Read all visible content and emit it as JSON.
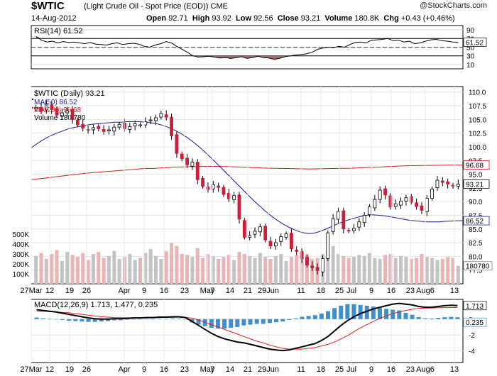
{
  "header": {
    "symbol": "$WTIC",
    "description": "(Light Crude Oil - Spot Price (EOD))",
    "exchange": "CME",
    "date": "14-Aug-2012",
    "open_label": "Open",
    "open": "92.71",
    "high_label": "High",
    "high": "93.92",
    "low_label": "Low",
    "low": "92.56",
    "close_label": "Close",
    "close": "93.21",
    "volume_label": "Volume",
    "volume": "180.8K",
    "chg_label": "Chg",
    "chg": "+0.43 (+0.46%)",
    "watermark": "@StockCharts.com"
  },
  "colors": {
    "up": "#ffffff",
    "down": "#cc1e3c",
    "ma50": "#1c1c9c",
    "ma200": "#cc2020",
    "vol_up": "#c4c4c4",
    "vol_down": "#eab3b6",
    "macd_line": "#000000",
    "macd_signal": "#dd2020",
    "histogram": "#3f8fcc",
    "rsi_line": "#000000"
  },
  "chart_data": [
    {
      "type": "line",
      "panel": "rsi",
      "legend": "RSI(14) 61.52",
      "ylim": [
        0,
        100
      ],
      "ticks": [
        "90",
        "70",
        "50",
        "30",
        "10"
      ],
      "current_label": "61.52",
      "values": [
        75,
        66,
        62,
        64,
        60,
        63,
        61,
        62,
        60,
        58,
        61,
        57,
        56,
        55,
        58,
        60,
        56,
        58,
        59,
        57,
        52,
        50,
        55,
        58,
        63,
        60,
        52,
        45,
        38,
        30,
        27,
        28,
        29,
        27,
        25,
        26,
        24,
        26,
        28,
        24,
        26,
        29,
        26,
        25,
        22,
        24,
        28,
        30,
        32,
        33,
        35,
        38,
        45,
        48,
        50,
        49,
        52,
        50,
        56,
        61,
        62,
        60,
        66,
        67,
        68,
        70,
        65,
        66,
        62,
        64,
        58,
        60,
        64,
        67,
        68,
        65,
        64,
        62,
        61.52
      ]
    },
    {
      "type": "candlestick",
      "panel": "price",
      "legend": [
        "$WTIC (Daily) 93.21",
        "MA(50) 86.52",
        "MA(200) 96.68",
        "Volume 180,780"
      ],
      "ylim": [
        75,
        111
      ],
      "ticks": [
        "110.0",
        "107.5",
        "105.0",
        "102.5",
        "100.0",
        "97.5",
        "95.0",
        "92.5",
        "90.0",
        "87.5",
        "85.0",
        "82.5",
        "80.0",
        "77.5"
      ],
      "current_labels": {
        "close": "93.21",
        "ma200": "96.68",
        "ma50": "86.52",
        "volume": "180780"
      },
      "closes": [
        107.2,
        106.5,
        107.8,
        106.8,
        105.8,
        106.2,
        106.6,
        105.0,
        104.0,
        103.4,
        103.1,
        103.5,
        103.3,
        102.8,
        103.1,
        103.6,
        104.1,
        103.3,
        103.7,
        104.2,
        104.0,
        104.6,
        104.9,
        105.3,
        106.1,
        105.4,
        102.0,
        98.8,
        97.8,
        96.7,
        97.2,
        94.0,
        92.8,
        92.2,
        93.1,
        92.6,
        91.3,
        90.5,
        91.1,
        86.8,
        83.5,
        83.8,
        84.6,
        85.4,
        83.0,
        81.9,
        82.5,
        83.6,
        84.1,
        81.4,
        80.9,
        79.6,
        78.4,
        77.9,
        77.4,
        79.6,
        84.3,
        86.9,
        88.2,
        85.0,
        84.7,
        85.1,
        86.3,
        87.5,
        89.1,
        90.4,
        92.1,
        91.2,
        89.0,
        89.6,
        90.1,
        90.7,
        89.9,
        89.1,
        88.4,
        90.6,
        92.3,
        93.9,
        93.5,
        93.2,
        92.8,
        93.21
      ],
      "ma50": [
        99.8,
        100.6,
        101.3,
        101.9,
        102.4,
        102.8,
        103.2,
        103.5,
        103.7,
        103.9,
        104.1,
        104.2,
        104.3,
        104.4,
        104.5,
        104.5,
        104.6,
        104.6,
        104.6,
        104.5,
        104.4,
        104.2,
        103.9,
        103.5,
        103.0,
        102.4,
        101.7,
        100.9,
        100.0,
        99.0,
        98.0,
        96.9,
        95.8,
        94.7,
        93.6,
        92.5,
        91.4,
        90.3,
        89.3,
        88.3,
        87.4,
        86.6,
        85.9,
        85.3,
        84.8,
        84.4,
        84.2,
        84.2,
        84.5,
        84.9,
        85.4,
        85.9,
        86.3,
        86.7,
        87.0,
        87.3,
        87.5,
        87.6,
        87.5,
        87.4,
        87.2,
        87.0,
        86.8,
        86.6,
        86.5,
        86.4,
        86.3,
        86.3,
        86.3,
        86.4,
        86.45,
        86.5,
        86.52
      ],
      "ma200": [
        94.0,
        94.3,
        94.6,
        94.9,
        95.2,
        95.4,
        95.6,
        95.8,
        96.0,
        96.1,
        96.25,
        96.35,
        96.4,
        96.45,
        96.4,
        96.3,
        96.2,
        96.1,
        96.05,
        96.0,
        95.95,
        96.0,
        96.05,
        96.1,
        96.2,
        96.3,
        96.45,
        96.55,
        96.6,
        96.62,
        96.65,
        96.68
      ],
      "volume": [
        280,
        310,
        250,
        300,
        340,
        230,
        320,
        290,
        270,
        310,
        240,
        300,
        320,
        260,
        280,
        330,
        250,
        270,
        300,
        240,
        260,
        310,
        350,
        280,
        250,
        330,
        410,
        380,
        300,
        290,
        270,
        360,
        260,
        300,
        280,
        250,
        270,
        290,
        240,
        320,
        300,
        280,
        260,
        310,
        270,
        250,
        280,
        300,
        230,
        270,
        290,
        320,
        300,
        250,
        260,
        300,
        330,
        380,
        300,
        280,
        260,
        270,
        290,
        280,
        310,
        260,
        250,
        290,
        300,
        260,
        280,
        270,
        250,
        260,
        300,
        270,
        260,
        240,
        250,
        270,
        260,
        180.78
      ],
      "volume_ticks": [
        "500K",
        "400K",
        "300K",
        "200K",
        "100K"
      ]
    },
    {
      "type": "line",
      "panel": "macd",
      "legend": [
        "MACD(12,26,9) 1.713, 1.477, 0.235"
      ],
      "ylim": [
        -5.5,
        2.5
      ],
      "ticks": [
        "0",
        "-2",
        "-4"
      ],
      "current_labels": {
        "macd": "1.713",
        "histogram": "0.235"
      },
      "macd": [
        1.2,
        1.1,
        1.0,
        0.9,
        0.75,
        0.6,
        0.45,
        0.3,
        0.15,
        0.05,
        0.0,
        0.0,
        0.05,
        0.05,
        0.1,
        0.15,
        0.15,
        0.2,
        0.2,
        0.25,
        0.25,
        0.3,
        0.3,
        0.2,
        -0.3,
        -0.8,
        -1.3,
        -1.8,
        -2.2,
        -2.5,
        -2.7,
        -2.9,
        -3.0,
        -3.2,
        -3.4,
        -3.6,
        -3.8,
        -3.9,
        -4.0,
        -3.9,
        -3.7,
        -3.5,
        -3.3,
        -3.1,
        -2.7,
        -2.2,
        -1.5,
        -0.8,
        -0.2,
        0.3,
        0.7,
        1.0,
        1.3,
        1.5,
        1.7,
        1.9,
        2.0,
        1.9,
        1.8,
        1.6,
        1.5,
        1.5,
        1.6,
        1.7,
        1.75,
        1.713
      ],
      "signal": [
        1.0,
        1.0,
        0.95,
        0.9,
        0.85,
        0.8,
        0.7,
        0.6,
        0.5,
        0.4,
        0.3,
        0.25,
        0.2,
        0.18,
        0.17,
        0.17,
        0.17,
        0.18,
        0.19,
        0.2,
        0.21,
        0.22,
        0.24,
        0.23,
        0.12,
        -0.1,
        -0.4,
        -0.7,
        -1.0,
        -1.3,
        -1.6,
        -1.9,
        -2.2,
        -2.5,
        -2.8,
        -3.0,
        -3.3,
        -3.5,
        -3.7,
        -3.8,
        -3.8,
        -3.8,
        -3.7,
        -3.6,
        -3.4,
        -3.2,
        -2.9,
        -2.5,
        -2.1,
        -1.6,
        -1.1,
        -0.7,
        -0.3,
        0.1,
        0.4,
        0.7,
        0.9,
        1.1,
        1.25,
        1.35,
        1.4,
        1.42,
        1.44,
        1.46,
        1.47,
        1.477
      ],
      "histogram": [
        0.2,
        0.1,
        0.05,
        0.0,
        -0.1,
        -0.2,
        -0.25,
        -0.3,
        -0.35,
        -0.35,
        -0.3,
        -0.25,
        -0.15,
        -0.13,
        -0.07,
        -0.02,
        -0.02,
        0.02,
        0.01,
        0.05,
        0.04,
        0.08,
        0.06,
        -0.03,
        -0.42,
        -0.7,
        -0.9,
        -1.1,
        -1.2,
        -1.2,
        -1.1,
        -1.0,
        -0.8,
        -0.7,
        -0.6,
        -0.6,
        -0.5,
        -0.4,
        -0.3,
        -0.1,
        0.1,
        0.3,
        0.4,
        0.5,
        0.7,
        1.0,
        1.4,
        1.7,
        1.9,
        1.9,
        1.8,
        1.7,
        1.6,
        1.4,
        1.3,
        1.2,
        1.1,
        0.8,
        0.55,
        0.25,
        0.1,
        0.08,
        0.16,
        0.24,
        0.28,
        0.235
      ]
    }
  ],
  "x_axis": {
    "labels": [
      "27Mar",
      "12",
      "19",
      "26",
      "Apr",
      "9",
      "16",
      "23",
      "May",
      "7",
      "14",
      "21",
      "29Jun",
      "11",
      "18",
      "25",
      "Jul",
      "9",
      "16",
      "23",
      "Aug6",
      "13"
    ]
  }
}
